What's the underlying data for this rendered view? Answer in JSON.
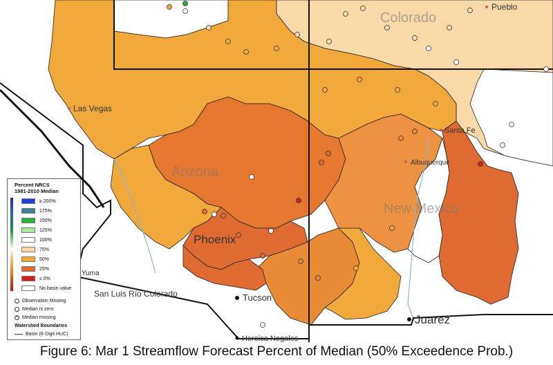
{
  "map": {
    "states": [
      "Colorado",
      "Arizona",
      "New Mexico"
    ],
    "cities": {
      "pueblo": "Pueblo",
      "las_vegas": "Las Vegas",
      "santa_fe": "Santa Fe",
      "albuquerque": "Albuquerque",
      "phoenix": "Phoenix",
      "tucson": "Tucson",
      "juarez": "Juarez",
      "san_luis": "San Luis Río Colorado",
      "heroica_nogales": "Heroica Nogales",
      "yuma": "Yuma"
    },
    "colors": {
      "pct_75": "#f9d9a8",
      "pct_50": "#f2a93b",
      "pct_25": "#e98a35",
      "pct_0": "#e06b32"
    }
  },
  "legend": {
    "title_line1": "Percent NRCS",
    "title_line2": "1981-2010 Median",
    "classes": [
      {
        "label": "≥ 200%",
        "color": "#2b3fd8"
      },
      {
        "label": "175%",
        "color": "#3a7f9a"
      },
      {
        "label": "150%",
        "color": "#28b23a"
      },
      {
        "label": "125%",
        "color": "#a8e8a0"
      },
      {
        "label": "100%",
        "color": "#ffffff"
      },
      {
        "label": "75%",
        "color": "#f9d9a8"
      },
      {
        "label": "50%",
        "color": "#f2a93b"
      },
      {
        "label": "25%",
        "color": "#e06b32"
      },
      {
        "label": "≤ 0%",
        "color": "#d42020"
      },
      {
        "label": "No basin value",
        "color": "#ffffff"
      }
    ],
    "symbols": [
      {
        "label": "Observation Missing",
        "icon": "circle-icon"
      },
      {
        "label": "Median is zero",
        "icon": "circle-icon"
      },
      {
        "label": "Median missing",
        "icon": "circle-x-icon"
      }
    ],
    "boundaries_title": "Watershed Boundaries",
    "boundary_item": "Basin (6-Digit HUC)"
  },
  "caption": "Figure 6: Mar 1 Streamflow Forecast Percent of Median (50% Exceedence Prob.)"
}
